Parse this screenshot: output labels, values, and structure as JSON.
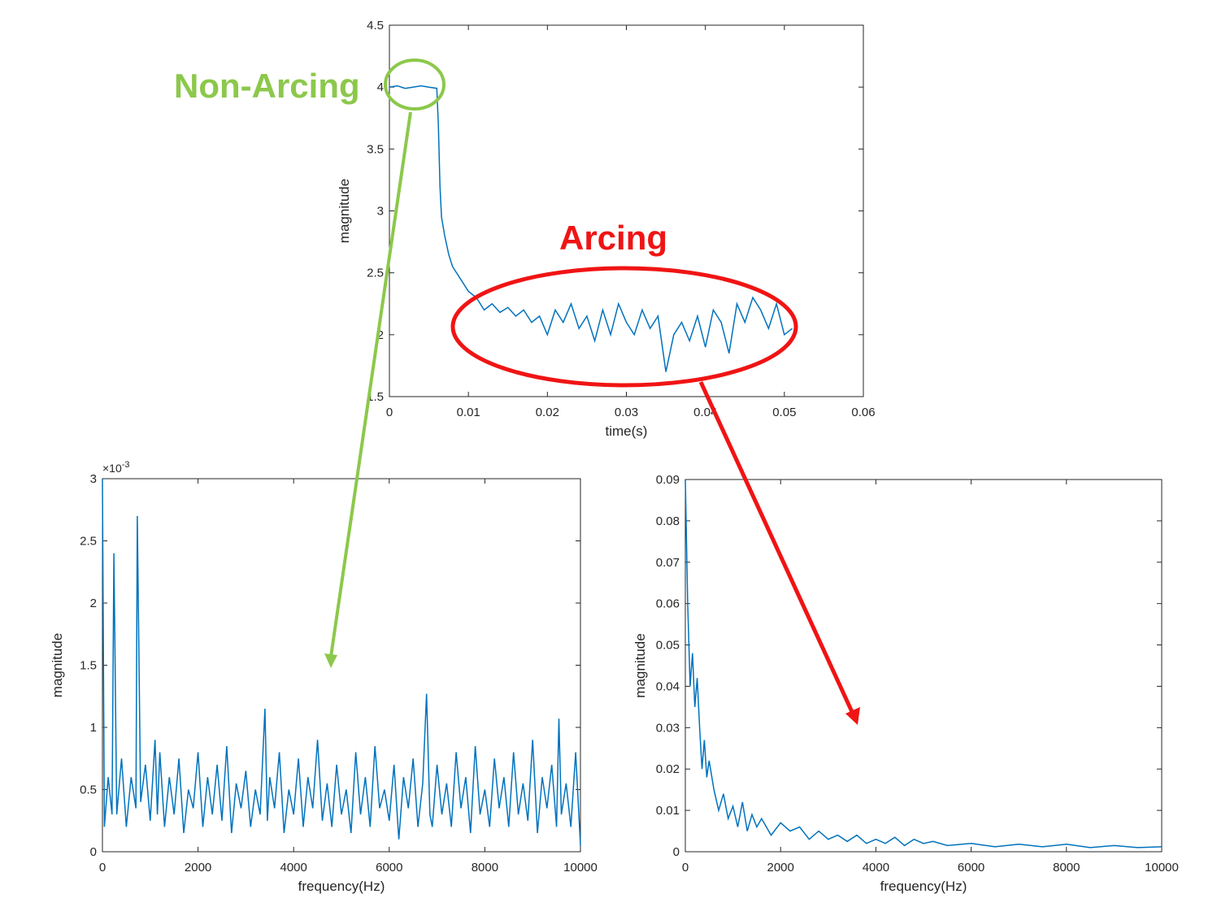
{
  "annotations": {
    "non_arcing": {
      "label": "Non-Arcing",
      "color": "#8cc84b"
    },
    "arcing": {
      "label": "Arcing",
      "color": "#f01414"
    }
  },
  "line_color": "#0072bd",
  "chart_data": [
    {
      "id": "time",
      "type": "line",
      "xlabel": "time(s)",
      "ylabel": "magnitude",
      "xlim": [
        0,
        0.06
      ],
      "ylim": [
        1.5,
        4.5
      ],
      "xticks": [
        0,
        0.01,
        0.02,
        0.03,
        0.04,
        0.05,
        0.06
      ],
      "yticks": [
        1.5,
        2,
        2.5,
        3,
        3.5,
        4,
        4.5
      ],
      "xticklabels": [
        "0",
        "0.01",
        "0.02",
        "0.03",
        "0.04",
        "0.05",
        "0.06"
      ],
      "yticklabels": [
        "1.5",
        "2",
        "2.5",
        "3",
        "3.5",
        "4",
        "4.5"
      ],
      "exponent_label": "",
      "grid": false,
      "series": [
        {
          "x": [
            0,
            0.001,
            0.002,
            0.003,
            0.004,
            0.005,
            0.006,
            0.0062,
            0.0064,
            0.0066,
            0.007,
            0.0075,
            0.008,
            0.009,
            0.01,
            0.011,
            0.012,
            0.013,
            0.014,
            0.015,
            0.016,
            0.017,
            0.018,
            0.019,
            0.02,
            0.021,
            0.022,
            0.023,
            0.024,
            0.025,
            0.026,
            0.027,
            0.028,
            0.029,
            0.03,
            0.031,
            0.032,
            0.033,
            0.034,
            0.035,
            0.036,
            0.037,
            0.038,
            0.039,
            0.04,
            0.041,
            0.042,
            0.043,
            0.044,
            0.045,
            0.046,
            0.047,
            0.048,
            0.049,
            0.05,
            0.051
          ],
          "y": [
            4.0,
            4.01,
            3.99,
            4.0,
            4.01,
            4.0,
            3.99,
            3.7,
            3.2,
            2.95,
            2.8,
            2.65,
            2.55,
            2.45,
            2.35,
            2.3,
            2.2,
            2.25,
            2.18,
            2.22,
            2.15,
            2.2,
            2.1,
            2.15,
            2.0,
            2.2,
            2.1,
            2.25,
            2.05,
            2.15,
            1.95,
            2.2,
            2.0,
            2.25,
            2.1,
            2.0,
            2.2,
            2.05,
            2.15,
            1.7,
            2.0,
            2.1,
            1.95,
            2.15,
            1.9,
            2.2,
            2.1,
            1.85,
            2.25,
            2.1,
            2.3,
            2.2,
            2.05,
            2.25,
            2.0,
            2.05
          ]
        }
      ]
    },
    {
      "id": "fft-non-arcing",
      "type": "line",
      "xlabel": "frequency(Hz)",
      "ylabel": "magnitude",
      "xlim": [
        0,
        10000
      ],
      "ylim": [
        0,
        3
      ],
      "xticks": [
        0,
        2000,
        4000,
        6000,
        8000,
        10000
      ],
      "yticks": [
        0,
        0.5,
        1,
        1.5,
        2,
        2.5,
        3
      ],
      "xticklabels": [
        "0",
        "2000",
        "4000",
        "6000",
        "8000",
        "10000"
      ],
      "yticklabels": [
        "0",
        "0.5",
        "1",
        "1.5",
        "2",
        "2.5",
        "3"
      ],
      "exponent_label": "×10",
      "exponent_power": "-3",
      "grid": false,
      "series": [
        {
          "x": [
            0,
            40,
            120,
            200,
            240,
            300,
            400,
            500,
            600,
            700,
            730,
            800,
            900,
            1000,
            1100,
            1150,
            1200,
            1300,
            1400,
            1500,
            1600,
            1700,
            1800,
            1900,
            2000,
            2100,
            2200,
            2300,
            2400,
            2500,
            2600,
            2700,
            2800,
            2900,
            3000,
            3100,
            3200,
            3300,
            3400,
            3450,
            3500,
            3600,
            3700,
            3800,
            3900,
            4000,
            4100,
            4200,
            4300,
            4400,
            4500,
            4600,
            4700,
            4800,
            4900,
            5000,
            5100,
            5200,
            5300,
            5400,
            5500,
            5600,
            5700,
            5800,
            5900,
            6000,
            6100,
            6200,
            6300,
            6400,
            6500,
            6600,
            6700,
            6780,
            6850,
            6900,
            7000,
            7100,
            7200,
            7300,
            7400,
            7500,
            7600,
            7700,
            7800,
            7900,
            8000,
            8100,
            8200,
            8300,
            8400,
            8500,
            8600,
            8700,
            8800,
            8900,
            9000,
            9100,
            9200,
            9300,
            9400,
            9500,
            9550,
            9600,
            9700,
            9800,
            9900,
            10000
          ],
          "y": [
            3.0,
            0.2,
            0.6,
            0.3,
            2.4,
            0.3,
            0.75,
            0.2,
            0.6,
            0.35,
            2.7,
            0.4,
            0.7,
            0.25,
            0.9,
            0.3,
            0.8,
            0.2,
            0.6,
            0.3,
            0.75,
            0.15,
            0.5,
            0.35,
            0.8,
            0.2,
            0.6,
            0.3,
            0.7,
            0.25,
            0.85,
            0.15,
            0.55,
            0.35,
            0.65,
            0.2,
            0.5,
            0.3,
            1.15,
            0.25,
            0.6,
            0.35,
            0.8,
            0.15,
            0.5,
            0.3,
            0.75,
            0.2,
            0.6,
            0.35,
            0.9,
            0.25,
            0.55,
            0.2,
            0.7,
            0.3,
            0.5,
            0.15,
            0.8,
            0.3,
            0.6,
            0.2,
            0.85,
            0.35,
            0.5,
            0.25,
            0.7,
            0.1,
            0.6,
            0.35,
            0.75,
            0.2,
            0.55,
            1.27,
            0.3,
            0.2,
            0.7,
            0.3,
            0.55,
            0.2,
            0.8,
            0.35,
            0.6,
            0.15,
            0.85,
            0.3,
            0.5,
            0.2,
            0.75,
            0.35,
            0.6,
            0.2,
            0.8,
            0.3,
            0.55,
            0.25,
            0.9,
            0.15,
            0.6,
            0.35,
            0.7,
            0.2,
            1.07,
            0.3,
            0.55,
            0.2,
            0.8,
            0.05
          ]
        }
      ]
    },
    {
      "id": "fft-arcing",
      "type": "line",
      "xlabel": "frequency(Hz)",
      "ylabel": "magnitude",
      "xlim": [
        0,
        10000
      ],
      "ylim": [
        0,
        0.09
      ],
      "xticks": [
        0,
        2000,
        4000,
        6000,
        8000,
        10000
      ],
      "yticks": [
        0,
        0.01,
        0.02,
        0.03,
        0.04,
        0.05,
        0.06,
        0.07,
        0.08,
        0.09
      ],
      "xticklabels": [
        "0",
        "2000",
        "4000",
        "6000",
        "8000",
        "10000"
      ],
      "yticklabels": [
        "0",
        "0.01",
        "0.02",
        "0.03",
        "0.04",
        "0.05",
        "0.06",
        "0.07",
        "0.08",
        "0.09"
      ],
      "exponent_label": "",
      "grid": false,
      "series": [
        {
          "x": [
            0,
            50,
            100,
            150,
            200,
            250,
            300,
            350,
            400,
            450,
            500,
            600,
            700,
            800,
            900,
            1000,
            1100,
            1200,
            1300,
            1400,
            1500,
            1600,
            1800,
            2000,
            2200,
            2400,
            2600,
            2800,
            3000,
            3200,
            3400,
            3600,
            3800,
            4000,
            4200,
            4400,
            4600,
            4800,
            5000,
            5200,
            5500,
            6000,
            6500,
            7000,
            7500,
            8000,
            8500,
            9000,
            9500,
            10000
          ],
          "y": [
            0.09,
            0.06,
            0.04,
            0.048,
            0.035,
            0.042,
            0.03,
            0.02,
            0.027,
            0.018,
            0.022,
            0.015,
            0.01,
            0.014,
            0.008,
            0.011,
            0.006,
            0.012,
            0.005,
            0.009,
            0.006,
            0.008,
            0.004,
            0.007,
            0.005,
            0.006,
            0.003,
            0.005,
            0.003,
            0.004,
            0.0025,
            0.004,
            0.002,
            0.003,
            0.002,
            0.0035,
            0.0015,
            0.003,
            0.002,
            0.0025,
            0.0015,
            0.002,
            0.0012,
            0.0018,
            0.0012,
            0.0018,
            0.001,
            0.0015,
            0.001,
            0.0012
          ]
        }
      ]
    }
  ]
}
